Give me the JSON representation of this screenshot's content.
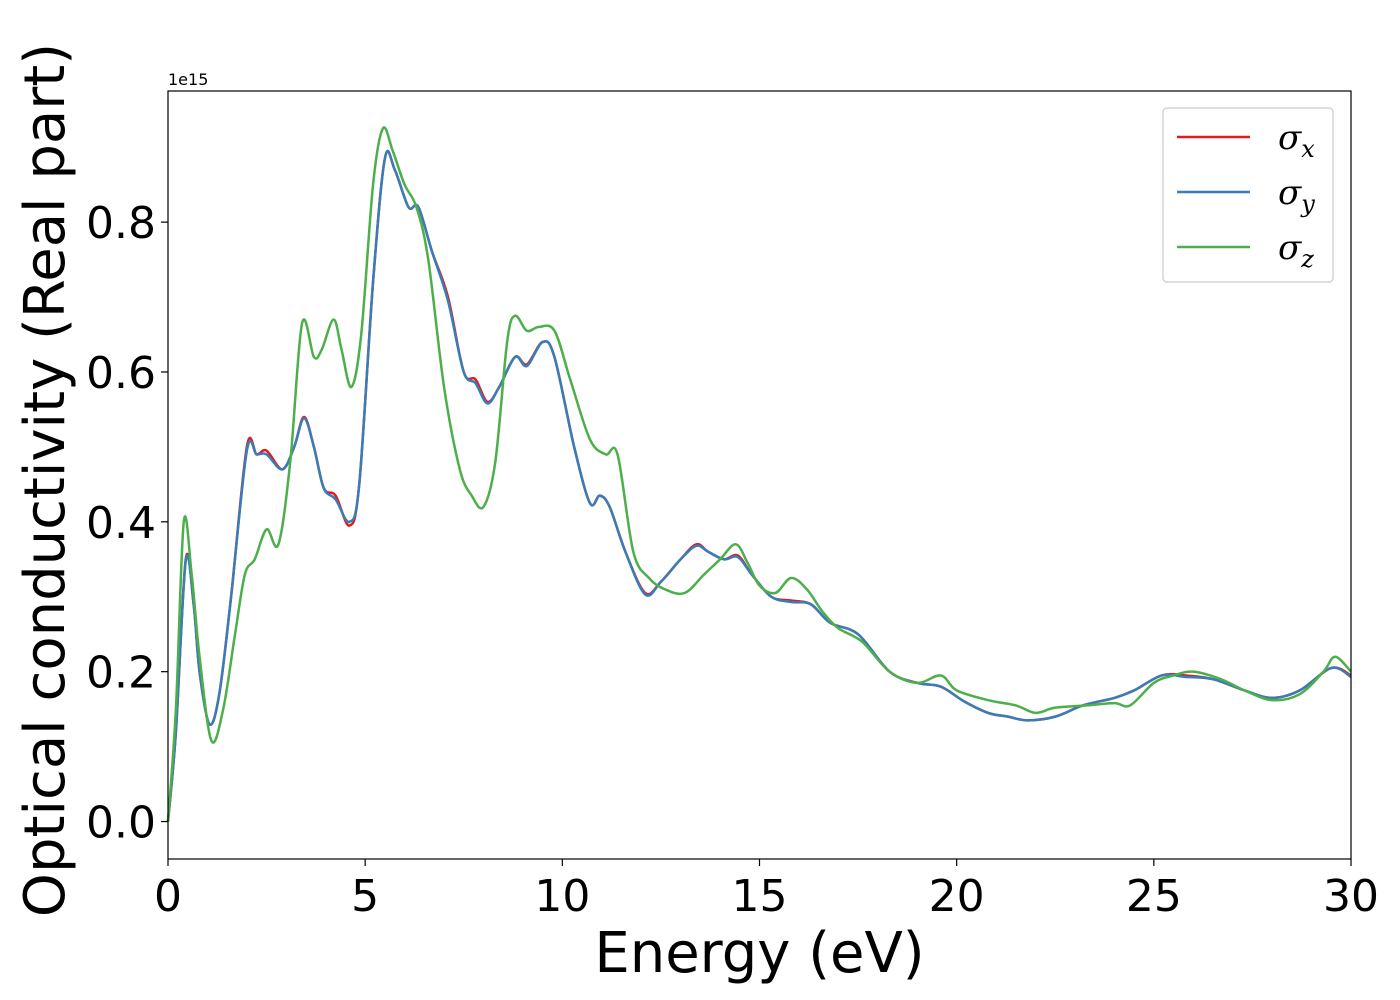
{
  "chart_data": {
    "type": "line",
    "xlabel": "Energy (eV)",
    "ylabel": "Optical conductivity (Real part)",
    "y_offset_label": "1e15",
    "xlim": [
      0,
      30
    ],
    "ylim": [
      -0.05,
      0.975
    ],
    "x_ticks": [
      0,
      5,
      10,
      15,
      20,
      25,
      30
    ],
    "y_ticks": [
      0.0,
      0.2,
      0.4,
      0.6,
      0.8
    ],
    "x_tick_labels": [
      "0",
      "5",
      "10",
      "15",
      "20",
      "25",
      "30"
    ],
    "y_tick_labels": [
      "0.0",
      "0.2",
      "0.4",
      "0.6",
      "0.8"
    ],
    "grid": false,
    "legend_position": "top-right",
    "legend": [
      {
        "symbol": "σ",
        "sub": "x"
      },
      {
        "symbol": "σ",
        "sub": "y"
      },
      {
        "symbol": "σ",
        "sub": "z"
      }
    ],
    "series": [
      {
        "name": "σx",
        "color": "#e41a1c",
        "points": [
          [
            0,
            0
          ],
          [
            0.2,
            0.12
          ],
          [
            0.45,
            0.35
          ],
          [
            0.65,
            0.29
          ],
          [
            0.8,
            0.2
          ],
          [
            1.05,
            0.13
          ],
          [
            1.3,
            0.17
          ],
          [
            1.6,
            0.3
          ],
          [
            2.0,
            0.5
          ],
          [
            2.25,
            0.49
          ],
          [
            2.5,
            0.495
          ],
          [
            2.9,
            0.47
          ],
          [
            3.2,
            0.5
          ],
          [
            3.45,
            0.54
          ],
          [
            3.7,
            0.5
          ],
          [
            3.95,
            0.445
          ],
          [
            4.25,
            0.435
          ],
          [
            4.6,
            0.395
          ],
          [
            4.85,
            0.45
          ],
          [
            5.2,
            0.72
          ],
          [
            5.5,
            0.885
          ],
          [
            5.75,
            0.87
          ],
          [
            6.1,
            0.82
          ],
          [
            6.35,
            0.82
          ],
          [
            6.7,
            0.76
          ],
          [
            7.1,
            0.7
          ],
          [
            7.5,
            0.6
          ],
          [
            7.8,
            0.59
          ],
          [
            8.1,
            0.56
          ],
          [
            8.4,
            0.58
          ],
          [
            8.8,
            0.62
          ],
          [
            9.1,
            0.61
          ],
          [
            9.5,
            0.64
          ],
          [
            9.8,
            0.62
          ],
          [
            10.3,
            0.5
          ],
          [
            10.7,
            0.425
          ],
          [
            10.95,
            0.435
          ],
          [
            11.2,
            0.42
          ],
          [
            11.6,
            0.36
          ],
          [
            12.1,
            0.305
          ],
          [
            12.5,
            0.32
          ],
          [
            13.0,
            0.35
          ],
          [
            13.4,
            0.37
          ],
          [
            13.7,
            0.36
          ],
          [
            14.1,
            0.35
          ],
          [
            14.45,
            0.355
          ],
          [
            14.8,
            0.33
          ],
          [
            15.3,
            0.3
          ],
          [
            15.8,
            0.295
          ],
          [
            16.3,
            0.29
          ],
          [
            16.8,
            0.265
          ],
          [
            17.5,
            0.25
          ],
          [
            18.3,
            0.2
          ],
          [
            19.0,
            0.185
          ],
          [
            19.6,
            0.18
          ],
          [
            20.2,
            0.16
          ],
          [
            20.8,
            0.145
          ],
          [
            21.3,
            0.14
          ],
          [
            21.8,
            0.135
          ],
          [
            22.5,
            0.14
          ],
          [
            23.2,
            0.155
          ],
          [
            24.0,
            0.165
          ],
          [
            24.5,
            0.175
          ],
          [
            25.2,
            0.195
          ],
          [
            25.8,
            0.195
          ],
          [
            26.5,
            0.19
          ],
          [
            27.3,
            0.175
          ],
          [
            28.0,
            0.165
          ],
          [
            28.7,
            0.175
          ],
          [
            29.5,
            0.205
          ],
          [
            30,
            0.195
          ]
        ]
      },
      {
        "name": "σy",
        "color": "#377eb8",
        "points": [
          [
            0,
            0
          ],
          [
            0.2,
            0.12
          ],
          [
            0.45,
            0.348
          ],
          [
            0.65,
            0.29
          ],
          [
            0.8,
            0.2
          ],
          [
            1.05,
            0.13
          ],
          [
            1.3,
            0.17
          ],
          [
            1.6,
            0.3
          ],
          [
            2.0,
            0.495
          ],
          [
            2.25,
            0.49
          ],
          [
            2.5,
            0.49
          ],
          [
            2.9,
            0.47
          ],
          [
            3.2,
            0.5
          ],
          [
            3.45,
            0.538
          ],
          [
            3.7,
            0.5
          ],
          [
            3.95,
            0.445
          ],
          [
            4.25,
            0.43
          ],
          [
            4.6,
            0.4
          ],
          [
            4.85,
            0.45
          ],
          [
            5.2,
            0.72
          ],
          [
            5.5,
            0.885
          ],
          [
            5.75,
            0.87
          ],
          [
            6.1,
            0.82
          ],
          [
            6.35,
            0.82
          ],
          [
            6.7,
            0.76
          ],
          [
            7.1,
            0.695
          ],
          [
            7.5,
            0.6
          ],
          [
            7.8,
            0.585
          ],
          [
            8.1,
            0.558
          ],
          [
            8.4,
            0.58
          ],
          [
            8.8,
            0.62
          ],
          [
            9.1,
            0.608
          ],
          [
            9.5,
            0.64
          ],
          [
            9.8,
            0.62
          ],
          [
            10.3,
            0.5
          ],
          [
            10.7,
            0.425
          ],
          [
            10.95,
            0.435
          ],
          [
            11.2,
            0.42
          ],
          [
            11.6,
            0.36
          ],
          [
            12.1,
            0.303
          ],
          [
            12.5,
            0.32
          ],
          [
            13.0,
            0.35
          ],
          [
            13.4,
            0.368
          ],
          [
            13.7,
            0.36
          ],
          [
            14.1,
            0.35
          ],
          [
            14.45,
            0.353
          ],
          [
            14.8,
            0.33
          ],
          [
            15.3,
            0.3
          ],
          [
            15.8,
            0.293
          ],
          [
            16.3,
            0.29
          ],
          [
            16.8,
            0.265
          ],
          [
            17.5,
            0.25
          ],
          [
            18.3,
            0.2
          ],
          [
            19.0,
            0.185
          ],
          [
            19.6,
            0.18
          ],
          [
            20.2,
            0.16
          ],
          [
            20.8,
            0.145
          ],
          [
            21.3,
            0.14
          ],
          [
            21.8,
            0.135
          ],
          [
            22.5,
            0.14
          ],
          [
            23.2,
            0.155
          ],
          [
            24.0,
            0.165
          ],
          [
            24.5,
            0.175
          ],
          [
            25.2,
            0.195
          ],
          [
            25.8,
            0.193
          ],
          [
            26.5,
            0.19
          ],
          [
            27.3,
            0.175
          ],
          [
            28.0,
            0.165
          ],
          [
            28.7,
            0.175
          ],
          [
            29.5,
            0.205
          ],
          [
            30,
            0.193
          ]
        ]
      },
      {
        "name": "σz",
        "color": "#4daf4a",
        "points": [
          [
            0,
            0
          ],
          [
            0.2,
            0.15
          ],
          [
            0.4,
            0.4
          ],
          [
            0.6,
            0.33
          ],
          [
            0.8,
            0.22
          ],
          [
            1.1,
            0.108
          ],
          [
            1.4,
            0.15
          ],
          [
            1.7,
            0.25
          ],
          [
            1.95,
            0.33
          ],
          [
            2.2,
            0.35
          ],
          [
            2.5,
            0.39
          ],
          [
            2.8,
            0.37
          ],
          [
            3.1,
            0.48
          ],
          [
            3.4,
            0.665
          ],
          [
            3.7,
            0.62
          ],
          [
            3.9,
            0.63
          ],
          [
            4.2,
            0.67
          ],
          [
            4.4,
            0.63
          ],
          [
            4.65,
            0.58
          ],
          [
            4.9,
            0.65
          ],
          [
            5.2,
            0.85
          ],
          [
            5.45,
            0.925
          ],
          [
            5.7,
            0.895
          ],
          [
            6.0,
            0.85
          ],
          [
            6.3,
            0.82
          ],
          [
            6.6,
            0.75
          ],
          [
            7.0,
            0.58
          ],
          [
            7.4,
            0.47
          ],
          [
            7.7,
            0.435
          ],
          [
            8.0,
            0.42
          ],
          [
            8.3,
            0.48
          ],
          [
            8.6,
            0.64
          ],
          [
            8.8,
            0.675
          ],
          [
            9.1,
            0.655
          ],
          [
            9.4,
            0.66
          ],
          [
            9.8,
            0.655
          ],
          [
            10.2,
            0.59
          ],
          [
            10.7,
            0.51
          ],
          [
            11.1,
            0.49
          ],
          [
            11.4,
            0.49
          ],
          [
            11.8,
            0.36
          ],
          [
            12.2,
            0.325
          ],
          [
            12.6,
            0.31
          ],
          [
            13.1,
            0.305
          ],
          [
            13.6,
            0.33
          ],
          [
            14.0,
            0.35
          ],
          [
            14.4,
            0.37
          ],
          [
            14.7,
            0.345
          ],
          [
            15.0,
            0.315
          ],
          [
            15.4,
            0.305
          ],
          [
            15.8,
            0.325
          ],
          [
            16.2,
            0.31
          ],
          [
            16.6,
            0.28
          ],
          [
            17.0,
            0.258
          ],
          [
            17.6,
            0.24
          ],
          [
            18.3,
            0.2
          ],
          [
            19.0,
            0.185
          ],
          [
            19.6,
            0.195
          ],
          [
            20.0,
            0.175
          ],
          [
            20.8,
            0.162
          ],
          [
            21.5,
            0.155
          ],
          [
            22.0,
            0.145
          ],
          [
            22.5,
            0.152
          ],
          [
            23.3,
            0.155
          ],
          [
            24.0,
            0.158
          ],
          [
            24.4,
            0.155
          ],
          [
            25.0,
            0.185
          ],
          [
            25.5,
            0.195
          ],
          [
            26.0,
            0.2
          ],
          [
            26.7,
            0.19
          ],
          [
            27.3,
            0.175
          ],
          [
            28.0,
            0.162
          ],
          [
            28.7,
            0.17
          ],
          [
            29.3,
            0.2
          ],
          [
            29.6,
            0.22
          ],
          [
            30,
            0.2
          ]
        ]
      }
    ]
  }
}
